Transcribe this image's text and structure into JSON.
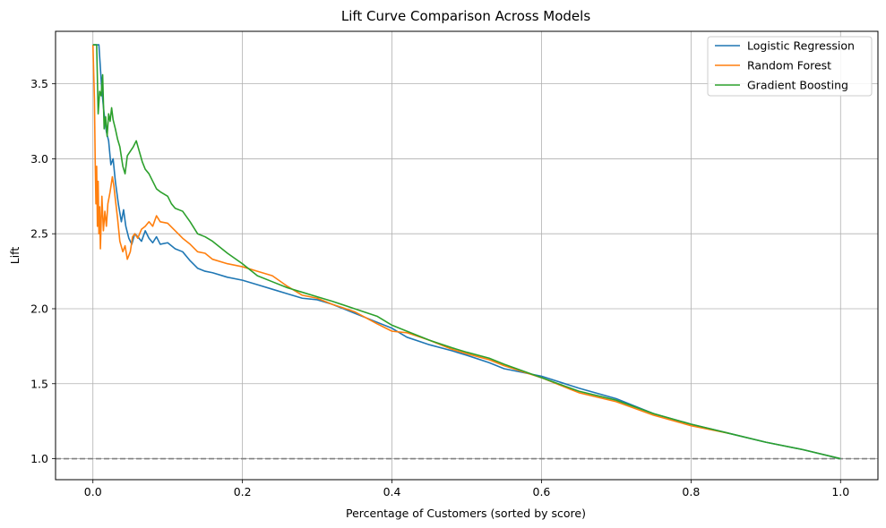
{
  "chart_data": {
    "type": "line",
    "title": "Lift Curve Comparison Across Models",
    "xlabel": "Percentage of Customers (sorted by score)",
    "ylabel": "Lift",
    "xlim": [
      -0.05,
      1.05
    ],
    "ylim": [
      0.86,
      3.85
    ],
    "xticks": [
      0.0,
      0.2,
      0.4,
      0.6,
      0.8,
      1.0
    ],
    "xtick_labels": [
      "0.0",
      "0.2",
      "0.4",
      "0.6",
      "0.8",
      "1.0"
    ],
    "yticks": [
      1.0,
      1.5,
      2.0,
      2.5,
      3.0,
      3.5
    ],
    "ytick_labels": [
      "1.0",
      "1.5",
      "2.0",
      "2.5",
      "3.0",
      "3.5"
    ],
    "grid": true,
    "legend": "top-right",
    "baseline": {
      "y": 1.0,
      "style": "dashed",
      "color": "#808080"
    },
    "series": [
      {
        "name": "Logistic Regression",
        "color": "#1f77b4",
        "points": [
          [
            0.0,
            3.76
          ],
          [
            0.004,
            3.76
          ],
          [
            0.008,
            3.76
          ],
          [
            0.012,
            3.45
          ],
          [
            0.015,
            3.3
          ],
          [
            0.018,
            3.18
          ],
          [
            0.021,
            3.12
          ],
          [
            0.024,
            2.96
          ],
          [
            0.027,
            3.0
          ],
          [
            0.03,
            2.85
          ],
          [
            0.034,
            2.7
          ],
          [
            0.038,
            2.58
          ],
          [
            0.041,
            2.66
          ],
          [
            0.044,
            2.55
          ],
          [
            0.048,
            2.47
          ],
          [
            0.052,
            2.43
          ],
          [
            0.056,
            2.5
          ],
          [
            0.06,
            2.48
          ],
          [
            0.065,
            2.45
          ],
          [
            0.07,
            2.52
          ],
          [
            0.075,
            2.47
          ],
          [
            0.08,
            2.44
          ],
          [
            0.085,
            2.48
          ],
          [
            0.09,
            2.43
          ],
          [
            0.1,
            2.44
          ],
          [
            0.11,
            2.4
          ],
          [
            0.12,
            2.38
          ],
          [
            0.13,
            2.32
          ],
          [
            0.14,
            2.27
          ],
          [
            0.15,
            2.25
          ],
          [
            0.16,
            2.24
          ],
          [
            0.18,
            2.21
          ],
          [
            0.2,
            2.19
          ],
          [
            0.22,
            2.16
          ],
          [
            0.24,
            2.13
          ],
          [
            0.26,
            2.1
          ],
          [
            0.28,
            2.07
          ],
          [
            0.3,
            2.06
          ],
          [
            0.32,
            2.03
          ],
          [
            0.35,
            1.97
          ],
          [
            0.38,
            1.91
          ],
          [
            0.4,
            1.87
          ],
          [
            0.42,
            1.81
          ],
          [
            0.45,
            1.76
          ],
          [
            0.48,
            1.72
          ],
          [
            0.5,
            1.69
          ],
          [
            0.53,
            1.64
          ],
          [
            0.55,
            1.6
          ],
          [
            0.6,
            1.55
          ],
          [
            0.65,
            1.47
          ],
          [
            0.7,
            1.4
          ],
          [
            0.75,
            1.3
          ],
          [
            0.8,
            1.23
          ],
          [
            0.85,
            1.17
          ],
          [
            0.9,
            1.11
          ],
          [
            0.95,
            1.06
          ],
          [
            1.0,
            1.0
          ]
        ]
      },
      {
        "name": "Random Forest",
        "color": "#ff7f0e",
        "points": [
          [
            0.0,
            3.76
          ],
          [
            0.002,
            3.4
          ],
          [
            0.003,
            3.0
          ],
          [
            0.004,
            2.7
          ],
          [
            0.005,
            2.95
          ],
          [
            0.006,
            2.55
          ],
          [
            0.007,
            2.85
          ],
          [
            0.008,
            2.5
          ],
          [
            0.009,
            2.68
          ],
          [
            0.01,
            2.4
          ],
          [
            0.012,
            2.75
          ],
          [
            0.014,
            2.52
          ],
          [
            0.016,
            2.65
          ],
          [
            0.018,
            2.55
          ],
          [
            0.02,
            2.7
          ],
          [
            0.023,
            2.78
          ],
          [
            0.026,
            2.88
          ],
          [
            0.028,
            2.82
          ],
          [
            0.03,
            2.73
          ],
          [
            0.033,
            2.6
          ],
          [
            0.036,
            2.45
          ],
          [
            0.04,
            2.38
          ],
          [
            0.043,
            2.42
          ],
          [
            0.046,
            2.33
          ],
          [
            0.05,
            2.38
          ],
          [
            0.053,
            2.48
          ],
          [
            0.056,
            2.5
          ],
          [
            0.06,
            2.47
          ],
          [
            0.065,
            2.53
          ],
          [
            0.07,
            2.55
          ],
          [
            0.075,
            2.58
          ],
          [
            0.08,
            2.55
          ],
          [
            0.085,
            2.62
          ],
          [
            0.09,
            2.58
          ],
          [
            0.1,
            2.57
          ],
          [
            0.11,
            2.52
          ],
          [
            0.12,
            2.47
          ],
          [
            0.13,
            2.43
          ],
          [
            0.14,
            2.38
          ],
          [
            0.15,
            2.37
          ],
          [
            0.16,
            2.33
          ],
          [
            0.18,
            2.3
          ],
          [
            0.2,
            2.28
          ],
          [
            0.22,
            2.25
          ],
          [
            0.24,
            2.22
          ],
          [
            0.26,
            2.15
          ],
          [
            0.28,
            2.09
          ],
          [
            0.3,
            2.07
          ],
          [
            0.32,
            2.03
          ],
          [
            0.35,
            1.98
          ],
          [
            0.38,
            1.9
          ],
          [
            0.4,
            1.85
          ],
          [
            0.42,
            1.84
          ],
          [
            0.45,
            1.79
          ],
          [
            0.48,
            1.73
          ],
          [
            0.5,
            1.7
          ],
          [
            0.53,
            1.66
          ],
          [
            0.55,
            1.62
          ],
          [
            0.6,
            1.54
          ],
          [
            0.65,
            1.44
          ],
          [
            0.7,
            1.38
          ],
          [
            0.75,
            1.29
          ],
          [
            0.8,
            1.22
          ],
          [
            0.85,
            1.17
          ]
        ]
      },
      {
        "name": "Gradient Boosting",
        "color": "#2ca02c",
        "points": [
          [
            0.0,
            3.76
          ],
          [
            0.003,
            3.76
          ],
          [
            0.005,
            3.76
          ],
          [
            0.007,
            3.3
          ],
          [
            0.009,
            3.45
          ],
          [
            0.011,
            3.42
          ],
          [
            0.013,
            3.56
          ],
          [
            0.015,
            3.2
          ],
          [
            0.017,
            3.28
          ],
          [
            0.019,
            3.15
          ],
          [
            0.021,
            3.3
          ],
          [
            0.023,
            3.25
          ],
          [
            0.025,
            3.34
          ],
          [
            0.027,
            3.26
          ],
          [
            0.03,
            3.2
          ],
          [
            0.033,
            3.13
          ],
          [
            0.036,
            3.08
          ],
          [
            0.04,
            2.95
          ],
          [
            0.043,
            2.9
          ],
          [
            0.046,
            3.02
          ],
          [
            0.05,
            3.05
          ],
          [
            0.054,
            3.08
          ],
          [
            0.058,
            3.12
          ],
          [
            0.062,
            3.05
          ],
          [
            0.066,
            2.98
          ],
          [
            0.07,
            2.93
          ],
          [
            0.075,
            2.9
          ],
          [
            0.08,
            2.85
          ],
          [
            0.085,
            2.8
          ],
          [
            0.09,
            2.78
          ],
          [
            0.1,
            2.75
          ],
          [
            0.105,
            2.7
          ],
          [
            0.11,
            2.67
          ],
          [
            0.12,
            2.65
          ],
          [
            0.13,
            2.58
          ],
          [
            0.14,
            2.5
          ],
          [
            0.15,
            2.48
          ],
          [
            0.16,
            2.45
          ],
          [
            0.18,
            2.37
          ],
          [
            0.2,
            2.3
          ],
          [
            0.22,
            2.22
          ],
          [
            0.24,
            2.18
          ],
          [
            0.26,
            2.14
          ],
          [
            0.28,
            2.11
          ],
          [
            0.3,
            2.08
          ],
          [
            0.32,
            2.05
          ],
          [
            0.35,
            2.0
          ],
          [
            0.38,
            1.95
          ],
          [
            0.4,
            1.89
          ],
          [
            0.42,
            1.85
          ],
          [
            0.45,
            1.79
          ],
          [
            0.48,
            1.74
          ],
          [
            0.5,
            1.71
          ],
          [
            0.53,
            1.67
          ],
          [
            0.55,
            1.63
          ],
          [
            0.6,
            1.54
          ],
          [
            0.65,
            1.45
          ],
          [
            0.7,
            1.39
          ],
          [
            0.75,
            1.3
          ],
          [
            0.8,
            1.23
          ],
          [
            0.85,
            1.17
          ],
          [
            0.9,
            1.11
          ],
          [
            0.95,
            1.06
          ],
          [
            1.0,
            1.0
          ]
        ]
      }
    ]
  }
}
